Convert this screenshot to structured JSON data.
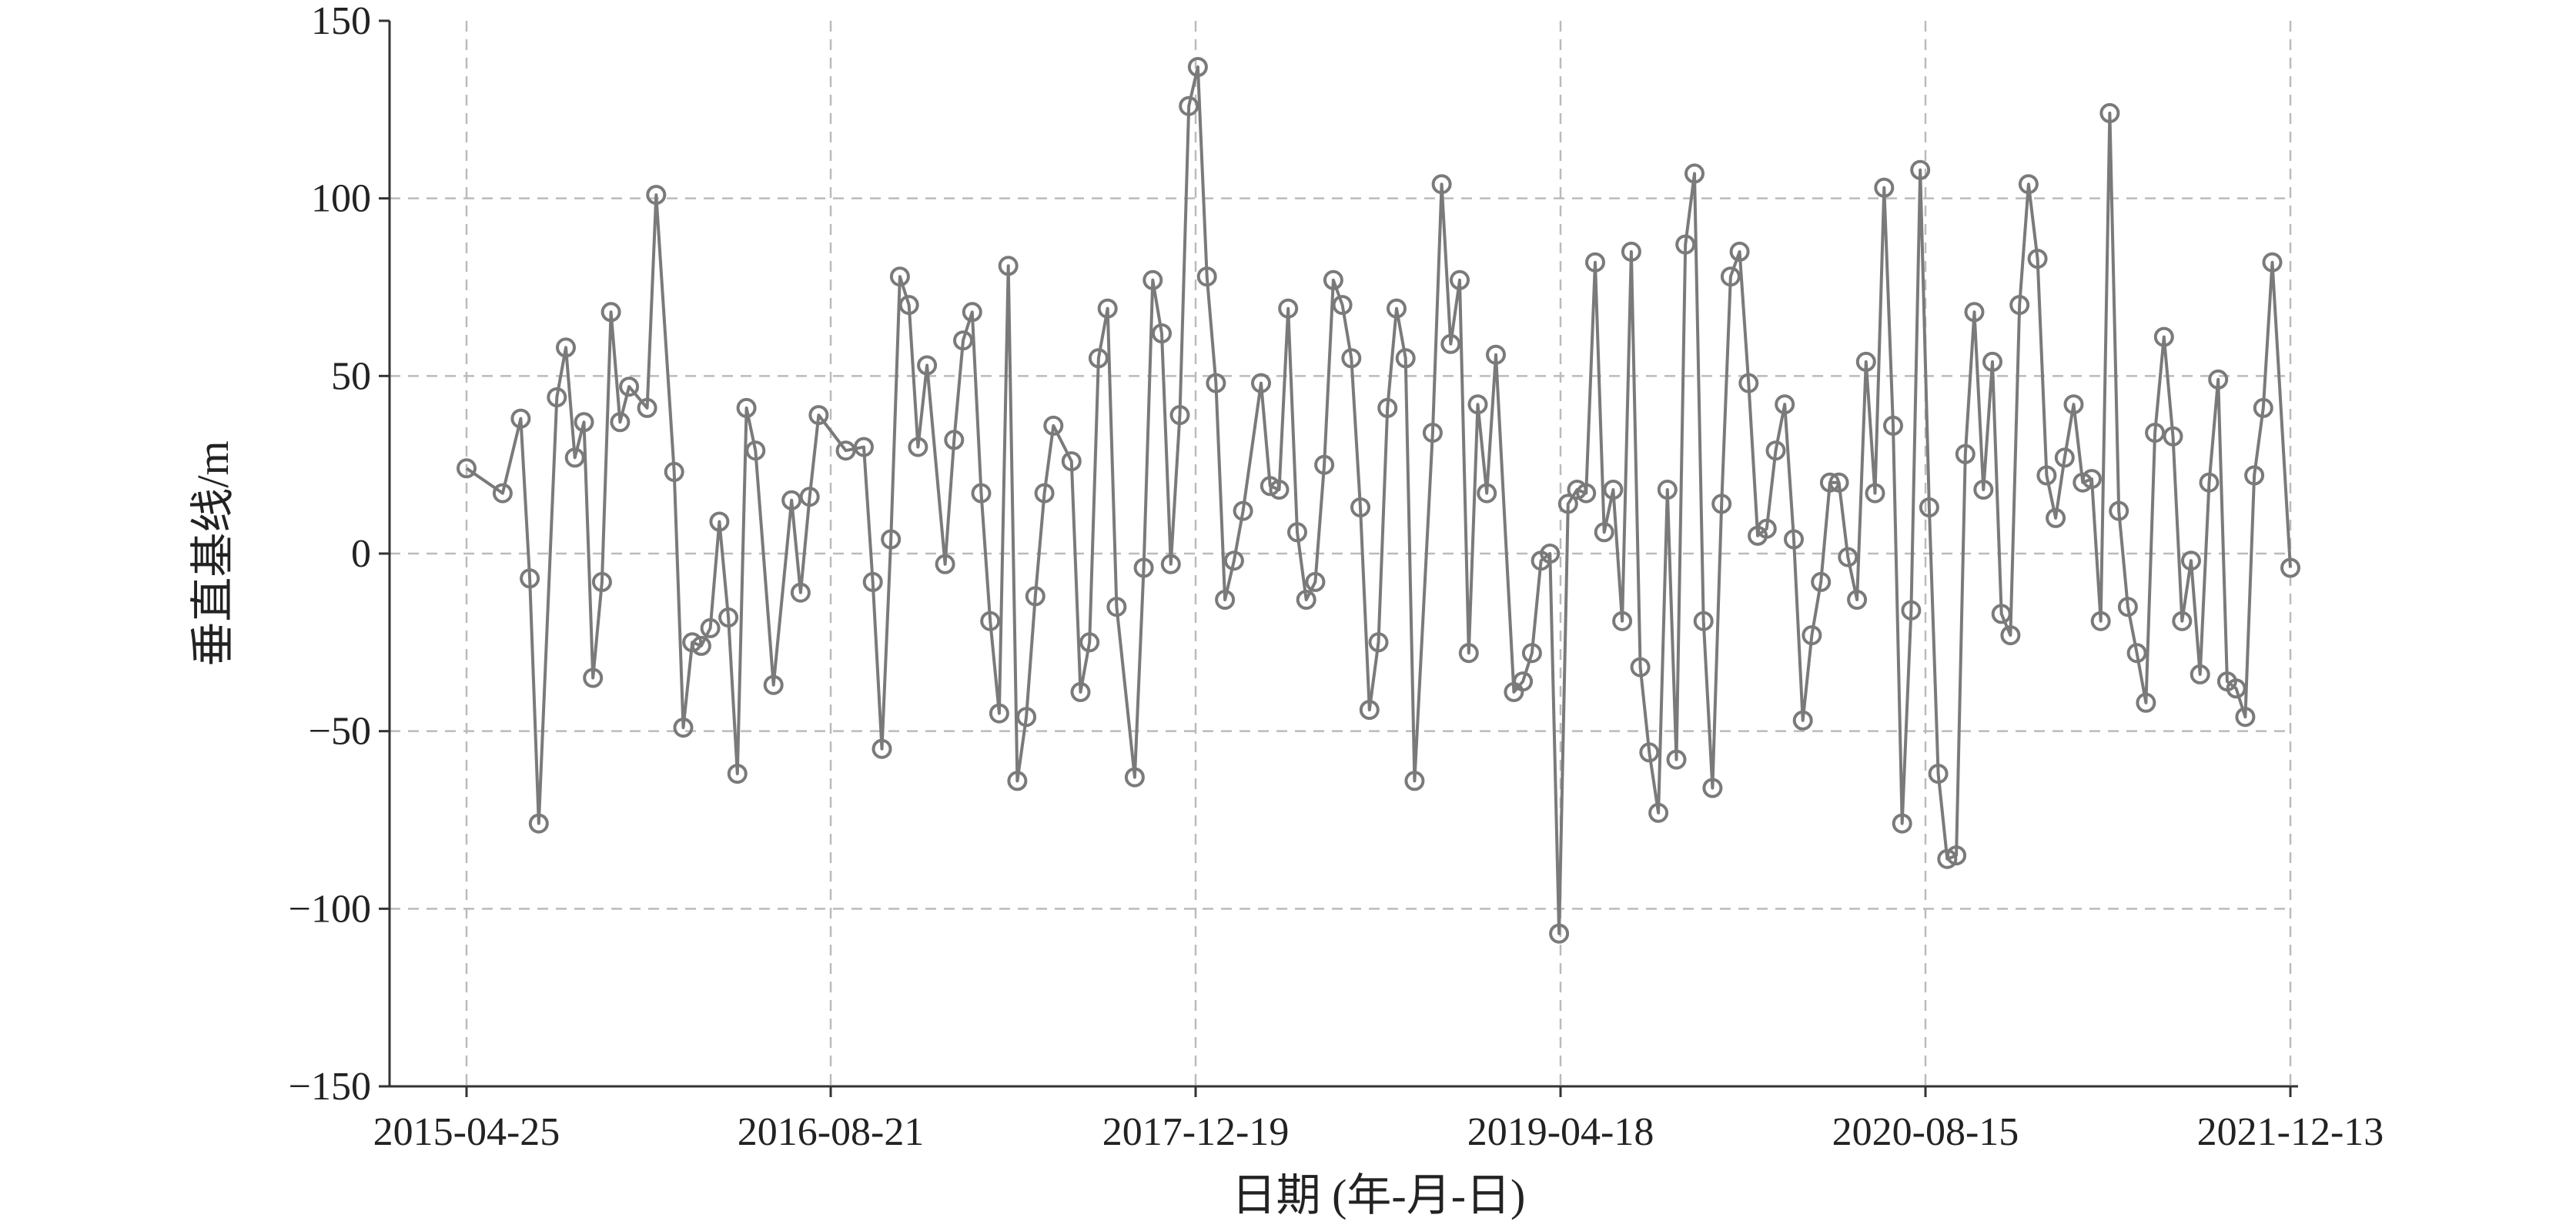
{
  "chart_data": {
    "type": "line",
    "xlabel": "日期 (年-月-日)",
    "ylabel": "垂直基线/m",
    "x_axis": {
      "kind": "date",
      "range": [
        "2015-04-25",
        "2021-12-13"
      ],
      "ticks": [
        "2015-04-25",
        "2016-08-21",
        "2017-12-19",
        "2019-04-18",
        "2020-08-15",
        "2021-12-13"
      ]
    },
    "y_axis": {
      "range": [
        -150,
        150
      ],
      "ticks": [
        150,
        100,
        50,
        0,
        -50,
        -100,
        -150
      ],
      "tick_labels": [
        "150",
        "100",
        "50",
        "0",
        "−50",
        "−100",
        "−150"
      ]
    },
    "grid": true,
    "marker": "hollow-circle",
    "colors": {
      "line": "#7a7a7a",
      "grid": "#bbbbbb",
      "axis": "#333333"
    },
    "series": [
      {
        "points": [
          [
            "2015-04-25",
            24
          ],
          [
            "2015-06-12",
            17
          ],
          [
            "2015-07-06",
            38
          ],
          [
            "2015-07-18",
            -7
          ],
          [
            "2015-07-30",
            -76
          ],
          [
            "2015-08-23",
            44
          ],
          [
            "2015-09-04",
            58
          ],
          [
            "2015-09-16",
            27
          ],
          [
            "2015-09-28",
            37
          ],
          [
            "2015-10-10",
            -35
          ],
          [
            "2015-10-22",
            -8
          ],
          [
            "2015-11-03",
            68
          ],
          [
            "2015-11-15",
            37
          ],
          [
            "2015-11-27",
            47
          ],
          [
            "2015-12-21",
            41
          ],
          [
            "2016-01-02",
            101
          ],
          [
            "2016-01-26",
            23
          ],
          [
            "2016-02-07",
            -49
          ],
          [
            "2016-02-19",
            -25
          ],
          [
            "2016-03-02",
            -26
          ],
          [
            "2016-03-14",
            -21
          ],
          [
            "2016-03-26",
            9
          ],
          [
            "2016-04-07",
            -18
          ],
          [
            "2016-04-19",
            -62
          ],
          [
            "2016-05-01",
            41
          ],
          [
            "2016-05-13",
            29
          ],
          [
            "2016-06-06",
            -37
          ],
          [
            "2016-06-30",
            15
          ],
          [
            "2016-07-12",
            -11
          ],
          [
            "2016-07-24",
            16
          ],
          [
            "2016-08-05",
            39
          ],
          [
            "2016-09-10",
            29
          ],
          [
            "2016-10-04",
            30
          ],
          [
            "2016-10-16",
            -8
          ],
          [
            "2016-10-28",
            -55
          ],
          [
            "2016-11-09",
            4
          ],
          [
            "2016-11-21",
            78
          ],
          [
            "2016-12-03",
            70
          ],
          [
            "2016-12-15",
            30
          ],
          [
            "2016-12-27",
            53
          ],
          [
            "2017-01-20",
            -3
          ],
          [
            "2017-02-01",
            32
          ],
          [
            "2017-02-13",
            60
          ],
          [
            "2017-02-25",
            68
          ],
          [
            "2017-03-09",
            17
          ],
          [
            "2017-03-21",
            -19
          ],
          [
            "2017-04-02",
            -45
          ],
          [
            "2017-04-14",
            81
          ],
          [
            "2017-04-26",
            -64
          ],
          [
            "2017-05-08",
            -46
          ],
          [
            "2017-05-20",
            -12
          ],
          [
            "2017-06-01",
            17
          ],
          [
            "2017-06-13",
            36
          ],
          [
            "2017-07-07",
            26
          ],
          [
            "2017-07-19",
            -39
          ],
          [
            "2017-07-31",
            -25
          ],
          [
            "2017-08-12",
            55
          ],
          [
            "2017-08-24",
            69
          ],
          [
            "2017-09-05",
            -15
          ],
          [
            "2017-09-29",
            -63
          ],
          [
            "2017-10-11",
            -4
          ],
          [
            "2017-10-23",
            77
          ],
          [
            "2017-11-04",
            62
          ],
          [
            "2017-11-16",
            -3
          ],
          [
            "2017-11-28",
            39
          ],
          [
            "2017-12-10",
            126
          ],
          [
            "2017-12-22",
            137
          ],
          [
            "2018-01-03",
            78
          ],
          [
            "2018-01-15",
            48
          ],
          [
            "2018-01-27",
            -13
          ],
          [
            "2018-02-08",
            -2
          ],
          [
            "2018-02-20",
            12
          ],
          [
            "2018-03-16",
            48
          ],
          [
            "2018-03-28",
            19
          ],
          [
            "2018-04-09",
            18
          ],
          [
            "2018-04-21",
            69
          ],
          [
            "2018-05-03",
            6
          ],
          [
            "2018-05-15",
            -13
          ],
          [
            "2018-05-27",
            -8
          ],
          [
            "2018-06-08",
            25
          ],
          [
            "2018-06-20",
            77
          ],
          [
            "2018-07-02",
            70
          ],
          [
            "2018-07-14",
            55
          ],
          [
            "2018-07-26",
            13
          ],
          [
            "2018-08-07",
            -44
          ],
          [
            "2018-08-19",
            -25
          ],
          [
            "2018-08-31",
            41
          ],
          [
            "2018-09-12",
            69
          ],
          [
            "2018-09-24",
            55
          ],
          [
            "2018-10-06",
            -64
          ],
          [
            "2018-10-30",
            34
          ],
          [
            "2018-11-11",
            104
          ],
          [
            "2018-11-23",
            59
          ],
          [
            "2018-12-05",
            77
          ],
          [
            "2018-12-17",
            -28
          ],
          [
            "2018-12-29",
            42
          ],
          [
            "2019-01-10",
            17
          ],
          [
            "2019-01-22",
            56
          ],
          [
            "2019-02-15",
            -39
          ],
          [
            "2019-02-27",
            -36
          ],
          [
            "2019-03-11",
            -28
          ],
          [
            "2019-03-23",
            -2
          ],
          [
            "2019-04-04",
            0
          ],
          [
            "2019-04-16",
            -107
          ],
          [
            "2019-04-28",
            14
          ],
          [
            "2019-05-10",
            18
          ],
          [
            "2019-05-22",
            17
          ],
          [
            "2019-06-03",
            82
          ],
          [
            "2019-06-15",
            6
          ],
          [
            "2019-06-27",
            18
          ],
          [
            "2019-07-09",
            -19
          ],
          [
            "2019-07-21",
            85
          ],
          [
            "2019-08-02",
            -32
          ],
          [
            "2019-08-14",
            -56
          ],
          [
            "2019-08-26",
            -73
          ],
          [
            "2019-09-07",
            18
          ],
          [
            "2019-09-19",
            -58
          ],
          [
            "2019-10-01",
            87
          ],
          [
            "2019-10-13",
            107
          ],
          [
            "2019-10-25",
            -19
          ],
          [
            "2019-11-06",
            -66
          ],
          [
            "2019-11-18",
            14
          ],
          [
            "2019-11-30",
            78
          ],
          [
            "2019-12-12",
            85
          ],
          [
            "2019-12-24",
            48
          ],
          [
            "2020-01-05",
            5
          ],
          [
            "2020-01-17",
            7
          ],
          [
            "2020-01-29",
            29
          ],
          [
            "2020-02-10",
            42
          ],
          [
            "2020-02-22",
            4
          ],
          [
            "2020-03-05",
            -47
          ],
          [
            "2020-03-17",
            -23
          ],
          [
            "2020-03-29",
            -8
          ],
          [
            "2020-04-10",
            20
          ],
          [
            "2020-04-22",
            20
          ],
          [
            "2020-05-04",
            -1
          ],
          [
            "2020-05-16",
            -13
          ],
          [
            "2020-05-28",
            54
          ],
          [
            "2020-06-09",
            17
          ],
          [
            "2020-06-21",
            103
          ],
          [
            "2020-07-03",
            36
          ],
          [
            "2020-07-15",
            -76
          ],
          [
            "2020-07-27",
            -16
          ],
          [
            "2020-08-08",
            108
          ],
          [
            "2020-08-20",
            13
          ],
          [
            "2020-09-01",
            -62
          ],
          [
            "2020-09-13",
            -86
          ],
          [
            "2020-09-25",
            -85
          ],
          [
            "2020-10-07",
            28
          ],
          [
            "2020-10-19",
            68
          ],
          [
            "2020-10-31",
            18
          ],
          [
            "2020-11-12",
            54
          ],
          [
            "2020-11-24",
            -17
          ],
          [
            "2020-12-06",
            -23
          ],
          [
            "2020-12-18",
            70
          ],
          [
            "2020-12-30",
            104
          ],
          [
            "2021-01-11",
            83
          ],
          [
            "2021-01-23",
            22
          ],
          [
            "2021-02-04",
            10
          ],
          [
            "2021-02-16",
            27
          ],
          [
            "2021-02-28",
            42
          ],
          [
            "2021-03-12",
            20
          ],
          [
            "2021-03-24",
            21
          ],
          [
            "2021-04-05",
            -19
          ],
          [
            "2021-04-17",
            124
          ],
          [
            "2021-04-29",
            12
          ],
          [
            "2021-05-11",
            -15
          ],
          [
            "2021-05-23",
            -28
          ],
          [
            "2021-06-04",
            -42
          ],
          [
            "2021-06-16",
            34
          ],
          [
            "2021-06-28",
            61
          ],
          [
            "2021-07-10",
            33
          ],
          [
            "2021-07-22",
            -19
          ],
          [
            "2021-08-03",
            -2
          ],
          [
            "2021-08-15",
            -34
          ],
          [
            "2021-08-27",
            20
          ],
          [
            "2021-09-08",
            49
          ],
          [
            "2021-09-20",
            -36
          ],
          [
            "2021-10-02",
            -38
          ],
          [
            "2021-10-14",
            -46
          ],
          [
            "2021-10-26",
            22
          ],
          [
            "2021-11-07",
            41
          ],
          [
            "2021-11-19",
            82
          ],
          [
            "2021-12-13",
            -4
          ]
        ]
      }
    ]
  }
}
